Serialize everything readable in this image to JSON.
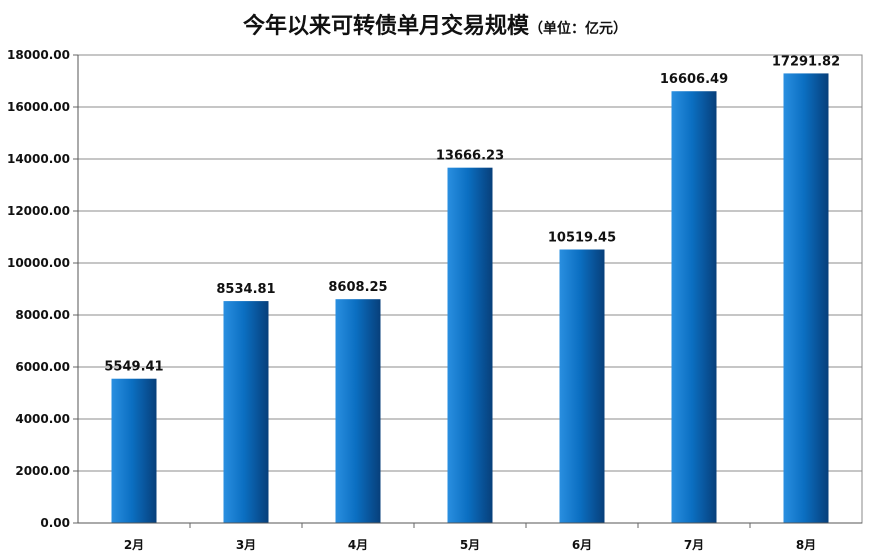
{
  "chart_data": {
    "type": "bar",
    "title": "今年以来可转债单月交易规模",
    "subtitle": "（单位：亿元）",
    "categories": [
      "2月",
      "3月",
      "4月",
      "5月",
      "6月",
      "7月",
      "8月"
    ],
    "values": [
      5549.41,
      8534.81,
      8608.25,
      13666.23,
      10519.45,
      16606.49,
      17291.82
    ],
    "data_labels": [
      "5549.41",
      "8534.81",
      "8608.25",
      "13666.23",
      "10519.45",
      "16606.49",
      "17291.82"
    ],
    "yticks": [
      "0.00",
      "2000.00",
      "4000.00",
      "6000.00",
      "8000.00",
      "10000.00",
      "12000.00",
      "14000.00",
      "16000.00",
      "18000.00"
    ],
    "ylim": [
      0,
      18000
    ],
    "grid": true,
    "bar_color": "#0070C0"
  }
}
